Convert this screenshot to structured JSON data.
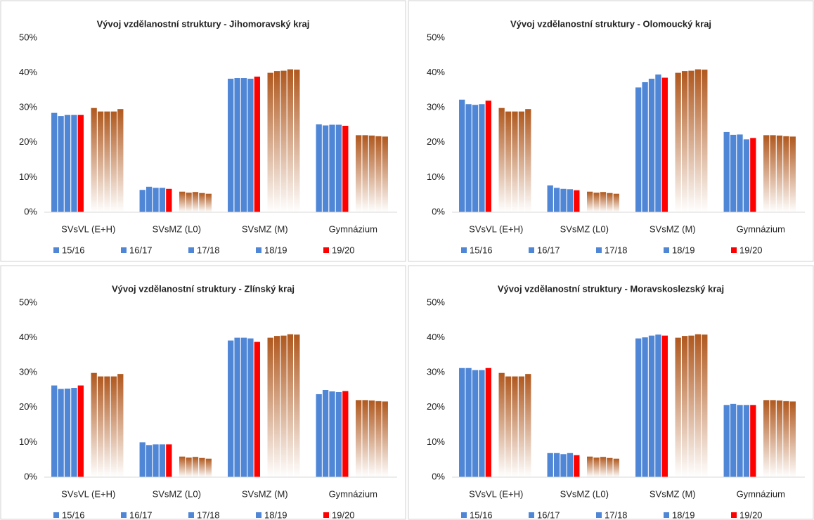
{
  "chart_data": [
    {
      "type": "bar",
      "title": "Vývoj vzdělanostní struktury - Jihomoravský kraj",
      "categories": [
        "SVsVL (E+H)",
        "SVsMZ (L0)",
        "SVsMZ (M)",
        "Gymnázium"
      ],
      "ylim": [
        0,
        50
      ],
      "yticks": [
        {
          "value": 0,
          "label": "0%"
        },
        {
          "value": 10,
          "label": "10%"
        },
        {
          "value": 20,
          "label": "20%"
        },
        {
          "value": 30,
          "label": "30%"
        },
        {
          "value": 40,
          "label": "40%"
        },
        {
          "value": 50,
          "label": "50%"
        }
      ],
      "series": [
        {
          "name": "15/16",
          "color": "#4f86d6",
          "values": [
            28.5,
            6.4,
            38.3,
            25.2
          ]
        },
        {
          "name": "16/17",
          "color": "#4f86d6",
          "values": [
            27.6,
            7.3,
            38.5,
            24.9
          ]
        },
        {
          "name": "17/18",
          "color": "#4f86d6",
          "values": [
            27.9,
            7.0,
            38.5,
            25.1
          ]
        },
        {
          "name": "18/19",
          "color": "#4f86d6",
          "values": [
            27.9,
            7.0,
            38.3,
            25.1
          ]
        },
        {
          "name": "19/20",
          "color": "#ff0000",
          "values": [
            27.9,
            6.7,
            38.9,
            24.8
          ]
        },
        {
          "color": "#b0581e",
          "values": [
            29.9,
            5.9,
            40.0,
            22.1
          ]
        },
        {
          "color": "#b0581e",
          "values": [
            28.9,
            5.6,
            40.5,
            22.1
          ]
        },
        {
          "color": "#b0581e",
          "values": [
            28.9,
            5.8,
            40.6,
            22.0
          ]
        },
        {
          "color": "#b0581e",
          "values": [
            28.9,
            5.5,
            41.0,
            21.8
          ]
        },
        {
          "color": "#b0581e",
          "values": [
            29.6,
            5.3,
            40.9,
            21.7
          ]
        }
      ]
    },
    {
      "type": "bar",
      "title": "Vývoj vzdělanostní struktury - Olomoucký kraj",
      "categories": [
        "SVsVL (E+H)",
        "SVsMZ (L0)",
        "SVsMZ (M)",
        "Gymnázium"
      ],
      "ylim": [
        0,
        50
      ],
      "yticks": [
        {
          "value": 0,
          "label": "0%"
        },
        {
          "value": 10,
          "label": "10%"
        },
        {
          "value": 20,
          "label": "20%"
        },
        {
          "value": 30,
          "label": "30%"
        },
        {
          "value": 40,
          "label": "40%"
        },
        {
          "value": 50,
          "label": "50%"
        }
      ],
      "series": [
        {
          "name": "15/16",
          "color": "#4f86d6",
          "values": [
            32.3,
            7.7,
            35.8,
            23.0
          ]
        },
        {
          "name": "16/17",
          "color": "#4f86d6",
          "values": [
            31.0,
            7.0,
            37.3,
            22.2
          ]
        },
        {
          "name": "17/18",
          "color": "#4f86d6",
          "values": [
            30.8,
            6.7,
            38.3,
            22.3
          ]
        },
        {
          "name": "18/19",
          "color": "#4f86d6",
          "values": [
            31.0,
            6.6,
            39.5,
            20.9
          ]
        },
        {
          "name": "19/20",
          "color": "#ff0000",
          "values": [
            32.0,
            6.3,
            38.6,
            21.3
          ]
        },
        {
          "color": "#b0581e",
          "values": [
            29.9,
            5.9,
            40.0,
            22.1
          ]
        },
        {
          "color": "#b0581e",
          "values": [
            28.9,
            5.6,
            40.5,
            22.1
          ]
        },
        {
          "color": "#b0581e",
          "values": [
            28.9,
            5.8,
            40.6,
            22.0
          ]
        },
        {
          "color": "#b0581e",
          "values": [
            28.9,
            5.5,
            41.0,
            21.8
          ]
        },
        {
          "color": "#b0581e",
          "values": [
            29.6,
            5.3,
            40.9,
            21.7
          ]
        }
      ]
    },
    {
      "type": "bar",
      "title": "Vývoj vzdělanostní struktury - Zlínský kraj",
      "categories": [
        "SVsVL (E+H)",
        "SVsMZ (L0)",
        "SVsMZ (M)",
        "Gymnázium"
      ],
      "ylim": [
        0,
        50
      ],
      "yticks": [
        {
          "value": 0,
          "label": "0%"
        },
        {
          "value": 10,
          "label": "10%"
        },
        {
          "value": 20,
          "label": "20%"
        },
        {
          "value": 30,
          "label": "30%"
        },
        {
          "value": 40,
          "label": "40%"
        },
        {
          "value": 50,
          "label": "50%"
        }
      ],
      "series": [
        {
          "name": "15/16",
          "color": "#4f86d6",
          "values": [
            26.3,
            10.0,
            39.2,
            23.8
          ]
        },
        {
          "name": "16/17",
          "color": "#4f86d6",
          "values": [
            25.3,
            9.2,
            40.0,
            25.0
          ]
        },
        {
          "name": "17/18",
          "color": "#4f86d6",
          "values": [
            25.4,
            9.4,
            40.0,
            24.6
          ]
        },
        {
          "name": "18/19",
          "color": "#4f86d6",
          "values": [
            25.6,
            9.4,
            39.8,
            24.4
          ]
        },
        {
          "name": "19/20",
          "color": "#ff0000",
          "values": [
            26.3,
            9.4,
            38.8,
            24.7
          ]
        },
        {
          "color": "#b0581e",
          "values": [
            29.9,
            5.9,
            40.0,
            22.1
          ]
        },
        {
          "color": "#b0581e",
          "values": [
            28.9,
            5.6,
            40.5,
            22.1
          ]
        },
        {
          "color": "#b0581e",
          "values": [
            28.9,
            5.8,
            40.6,
            22.0
          ]
        },
        {
          "color": "#b0581e",
          "values": [
            28.9,
            5.5,
            41.0,
            21.8
          ]
        },
        {
          "color": "#b0581e",
          "values": [
            29.6,
            5.3,
            40.9,
            21.7
          ]
        }
      ]
    },
    {
      "type": "bar",
      "title": "Vývoj vzdělanostní struktury - Moravskoslezský kraj",
      "categories": [
        "SVsVL (E+H)",
        "SVsMZ (L0)",
        "SVsMZ (M)",
        "Gymnázium"
      ],
      "ylim": [
        0,
        50
      ],
      "yticks": [
        {
          "value": 0,
          "label": "0%"
        },
        {
          "value": 10,
          "label": "10%"
        },
        {
          "value": 20,
          "label": "20%"
        },
        {
          "value": 30,
          "label": "30%"
        },
        {
          "value": 40,
          "label": "40%"
        },
        {
          "value": 50,
          "label": "50%"
        }
      ],
      "series": [
        {
          "name": "15/16",
          "color": "#4f86d6",
          "values": [
            31.3,
            6.9,
            39.8,
            20.7
          ]
        },
        {
          "name": "16/17",
          "color": "#4f86d6",
          "values": [
            31.3,
            6.9,
            40.1,
            21.0
          ]
        },
        {
          "name": "17/18",
          "color": "#4f86d6",
          "values": [
            30.7,
            6.6,
            40.6,
            20.7
          ]
        },
        {
          "name": "18/19",
          "color": "#4f86d6",
          "values": [
            30.7,
            6.9,
            40.9,
            20.7
          ]
        },
        {
          "name": "19/20",
          "color": "#ff0000",
          "values": [
            31.3,
            6.3,
            40.6,
            20.7
          ]
        },
        {
          "color": "#b0581e",
          "values": [
            29.9,
            5.9,
            40.0,
            22.1
          ]
        },
        {
          "color": "#b0581e",
          "values": [
            28.9,
            5.6,
            40.5,
            22.1
          ]
        },
        {
          "color": "#b0581e",
          "values": [
            28.9,
            5.8,
            40.6,
            22.0
          ]
        },
        {
          "color": "#b0581e",
          "values": [
            28.9,
            5.5,
            41.0,
            21.8
          ]
        },
        {
          "color": "#b0581e",
          "values": [
            29.6,
            5.3,
            40.9,
            21.7
          ]
        }
      ]
    }
  ]
}
